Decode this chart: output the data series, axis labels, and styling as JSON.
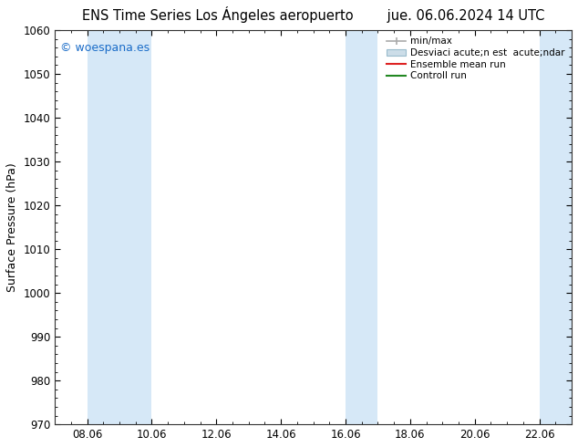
{
  "title": "ENS Time Series Los Ángeles aeropuerto        jue. 06.06.2024 14 UTC",
  "ylabel": "Surface Pressure (hPa)",
  "ylim": [
    970,
    1060
  ],
  "yticks": [
    970,
    980,
    990,
    1000,
    1010,
    1020,
    1030,
    1040,
    1050,
    1060
  ],
  "xlim": [
    0,
    16
  ],
  "xtick_labels": [
    "08.06",
    "10.06",
    "12.06",
    "14.06",
    "16.06",
    "18.06",
    "20.06",
    "22.06"
  ],
  "xtick_positions": [
    1.0,
    3.0,
    5.0,
    7.0,
    9.0,
    11.0,
    13.0,
    15.0
  ],
  "watermark": "© woespana.es",
  "watermark_color": "#1a6cc8",
  "bg_color": "#ffffff",
  "plot_bg_color": "#ffffff",
  "shaded_bands": [
    {
      "x_start": 1.0,
      "x_end": 3.0,
      "color": "#d6e8f7"
    },
    {
      "x_start": 9.0,
      "x_end": 10.0,
      "color": "#d6e8f7"
    },
    {
      "x_start": 15.0,
      "x_end": 16.0,
      "color": "#d6e8f7"
    }
  ],
  "legend_label_minmax": "min/max",
  "legend_label_std": "Desviaci acute;n est  acute;ndar",
  "legend_label_ensemble": "Ensemble mean run",
  "legend_label_control": "Controll run",
  "legend_color_minmax": "#aaaaaa",
  "legend_color_std": "#ccdde8",
  "legend_color_ensemble": "#dd2222",
  "legend_color_control": "#228822",
  "title_fontsize": 10.5,
  "label_fontsize": 9,
  "tick_fontsize": 8.5
}
